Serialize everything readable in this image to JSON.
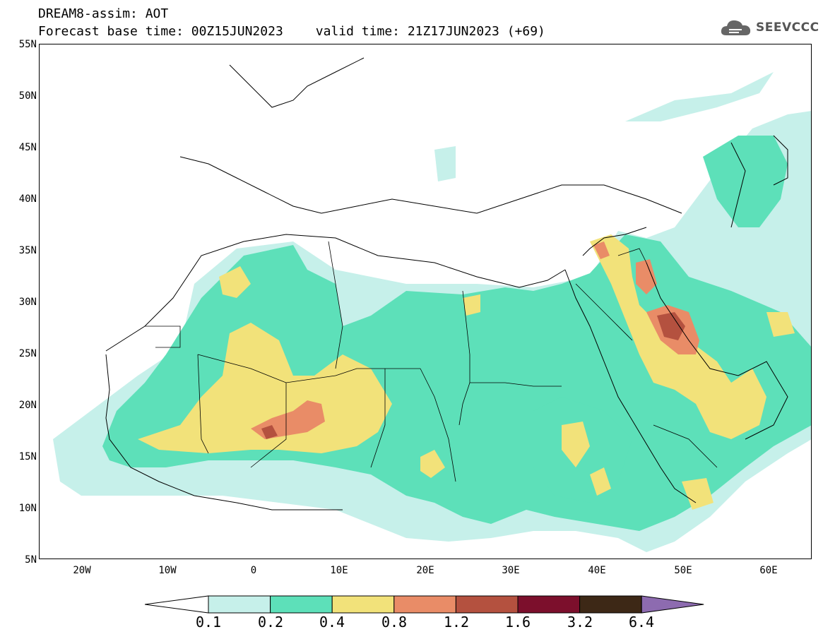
{
  "header": {
    "title_line1": "DREAM8-assim: AOT",
    "forecast_base": "Forecast base time: 00Z15JUN2023",
    "valid_time": "valid time: 21Z17JUN2023 (+69)"
  },
  "logo": {
    "text": "SEEVCCC",
    "icon": "cloud-icon"
  },
  "map": {
    "projection": "lat-lon",
    "lon_range": [
      -25,
      65
    ],
    "lat_range": [
      5,
      55
    ],
    "lat_ticks": [
      "55N",
      "50N",
      "45N",
      "40N",
      "35N",
      "30N",
      "25N",
      "20N",
      "15N",
      "10N",
      "5N"
    ],
    "lon_ticks": [
      "20W",
      "10W",
      "0",
      "10E",
      "20E",
      "30E",
      "40E",
      "50E",
      "60E"
    ],
    "field": "Aerosol optical thickness (dust)",
    "peak_regions": [
      "Mali/Niger (~1.2-1.6)",
      "Iraq/Kuwait (~1.2-1.6)"
    ]
  },
  "colorbar": {
    "labels": [
      "0.1",
      "0.2",
      "0.4",
      "0.8",
      "1.2",
      "1.6",
      "3.2",
      "6.4"
    ],
    "colors": [
      "#c6f0ea",
      "#5de0b9",
      "#f2e27a",
      "#e98c67",
      "#b4513f",
      "#7c0f2c",
      "#3d2816",
      "#8d6bb0"
    ],
    "under_color": "#ffffff"
  }
}
